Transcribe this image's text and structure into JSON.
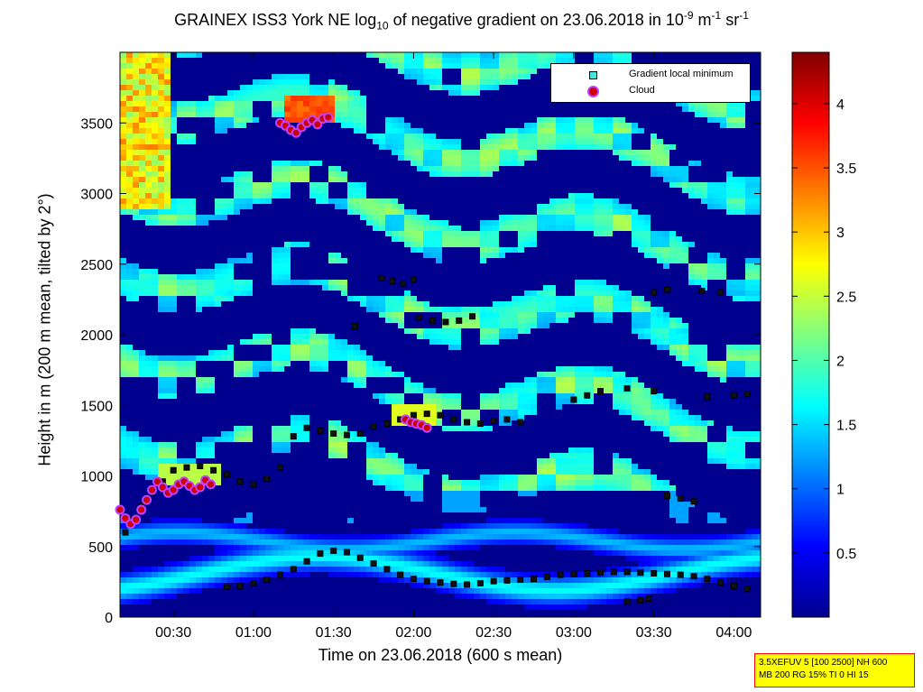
{
  "title": {
    "prefix": "GRAINEX ISS3 York NE log",
    "sub": "10",
    "middle": " of negative gradient on 23.06.2018 in 10",
    "exp1": "-9",
    "unit1": " m",
    "exp2": "-1",
    "unit2": " sr",
    "exp3": "-1"
  },
  "xlabel": "Time on 23.06.2018 (600 s mean)",
  "ylabel": "Height in m (200 m mean, tilted by 2°)",
  "legend": {
    "items": [
      {
        "label": "Gradient local minimum",
        "marker": "square",
        "color": "#49e3e0"
      },
      {
        "label": "Cloud",
        "marker": "circle",
        "color": "#cc0000"
      }
    ]
  },
  "infobox": {
    "line1": "3.5XEFUV 5 [100 2500] NH 600",
    "line2": "MB 200 RG 15% TI 0 HI 15"
  },
  "chart_data": {
    "type": "heatmap",
    "x_axis": {
      "range_minutes": [
        10,
        250
      ],
      "ticks": [
        "00:30",
        "01:00",
        "01:30",
        "02:00",
        "02:30",
        "03:00",
        "03:30",
        "04:00"
      ],
      "tick_minutes": [
        30,
        60,
        90,
        120,
        150,
        180,
        210,
        240
      ]
    },
    "y_axis": {
      "range": [
        0,
        4000
      ],
      "ticks": [
        0,
        500,
        1000,
        1500,
        2000,
        2500,
        3000,
        3500
      ]
    },
    "colorbar": {
      "range": [
        0,
        4.4
      ],
      "ticks": [
        0.5,
        1,
        1.5,
        2,
        2.5,
        3,
        3.5,
        4
      ],
      "colormap": "jet"
    },
    "series": [
      {
        "name": "Gradient local minimum",
        "points_minutes_height": [
          [
            50,
            215
          ],
          [
            55,
            220
          ],
          [
            60,
            240
          ],
          [
            65,
            265
          ],
          [
            70,
            300
          ],
          [
            75,
            340
          ],
          [
            80,
            395
          ],
          [
            85,
            450
          ],
          [
            90,
            470
          ],
          [
            95,
            460
          ],
          [
            100,
            420
          ],
          [
            105,
            380
          ],
          [
            110,
            340
          ],
          [
            115,
            300
          ],
          [
            120,
            270
          ],
          [
            125,
            255
          ],
          [
            130,
            245
          ],
          [
            135,
            235
          ],
          [
            140,
            230
          ],
          [
            145,
            240
          ],
          [
            150,
            255
          ],
          [
            155,
            260
          ],
          [
            160,
            265
          ],
          [
            165,
            270
          ],
          [
            170,
            285
          ],
          [
            175,
            300
          ],
          [
            180,
            305
          ],
          [
            185,
            310
          ],
          [
            190,
            315
          ],
          [
            195,
            320
          ],
          [
            200,
            320
          ],
          [
            205,
            315
          ],
          [
            210,
            310
          ],
          [
            215,
            305
          ],
          [
            220,
            300
          ],
          [
            225,
            290
          ],
          [
            230,
            270
          ],
          [
            235,
            245
          ],
          [
            240,
            220
          ],
          [
            245,
            200
          ],
          [
            12,
            600
          ],
          [
            15,
            700
          ],
          [
            18,
            790
          ],
          [
            22,
            880
          ],
          [
            26,
            960
          ],
          [
            30,
            1040
          ],
          [
            35,
            1060
          ],
          [
            40,
            1070
          ],
          [
            45,
            1040
          ],
          [
            50,
            1010
          ],
          [
            55,
            960
          ],
          [
            60,
            940
          ],
          [
            65,
            980
          ],
          [
            70,
            1060
          ],
          [
            75,
            1280
          ],
          [
            80,
            1340
          ],
          [
            85,
            1320
          ],
          [
            90,
            1300
          ],
          [
            95,
            1290
          ],
          [
            100,
            1300
          ],
          [
            105,
            1350
          ],
          [
            110,
            1370
          ],
          [
            115,
            1400
          ],
          [
            120,
            1430
          ],
          [
            125,
            1440
          ],
          [
            130,
            1430
          ],
          [
            135,
            1400
          ],
          [
            140,
            1380
          ],
          [
            145,
            1370
          ],
          [
            150,
            1390
          ],
          [
            155,
            1400
          ],
          [
            160,
            1380
          ],
          [
            98,
            2060
          ],
          [
            108,
            2400
          ],
          [
            112,
            2380
          ],
          [
            116,
            2360
          ],
          [
            120,
            2390
          ],
          [
            122,
            2120
          ],
          [
            127,
            2100
          ],
          [
            132,
            2090
          ],
          [
            137,
            2100
          ],
          [
            142,
            2130
          ],
          [
            180,
            1540
          ],
          [
            185,
            1570
          ],
          [
            190,
            1600
          ],
          [
            200,
            1620
          ],
          [
            210,
            1600
          ],
          [
            230,
            1560
          ],
          [
            240,
            1570
          ],
          [
            245,
            1580
          ],
          [
            210,
            2300
          ],
          [
            215,
            2320
          ],
          [
            228,
            2310
          ],
          [
            235,
            2300
          ],
          [
            215,
            860
          ],
          [
            220,
            840
          ],
          [
            225,
            820
          ],
          [
            200,
            110
          ],
          [
            205,
            120
          ],
          [
            208,
            130
          ]
        ]
      },
      {
        "name": "Cloud",
        "points_minutes_height": [
          [
            10,
            760
          ],
          [
            12,
            700
          ],
          [
            14,
            660
          ],
          [
            16,
            690
          ],
          [
            18,
            760
          ],
          [
            20,
            830
          ],
          [
            22,
            900
          ],
          [
            24,
            960
          ],
          [
            26,
            920
          ],
          [
            28,
            880
          ],
          [
            30,
            900
          ],
          [
            32,
            940
          ],
          [
            34,
            960
          ],
          [
            36,
            930
          ],
          [
            38,
            900
          ],
          [
            40,
            920
          ],
          [
            42,
            970
          ],
          [
            44,
            940
          ],
          [
            70,
            3500
          ],
          [
            72,
            3480
          ],
          [
            74,
            3450
          ],
          [
            76,
            3430
          ],
          [
            78,
            3470
          ],
          [
            80,
            3500
          ],
          [
            82,
            3520
          ],
          [
            84,
            3490
          ],
          [
            86,
            3530
          ],
          [
            88,
            3540
          ],
          [
            117,
            1400
          ],
          [
            119,
            1380
          ],
          [
            121,
            1370
          ],
          [
            123,
            1360
          ],
          [
            125,
            1340
          ]
        ]
      }
    ]
  }
}
